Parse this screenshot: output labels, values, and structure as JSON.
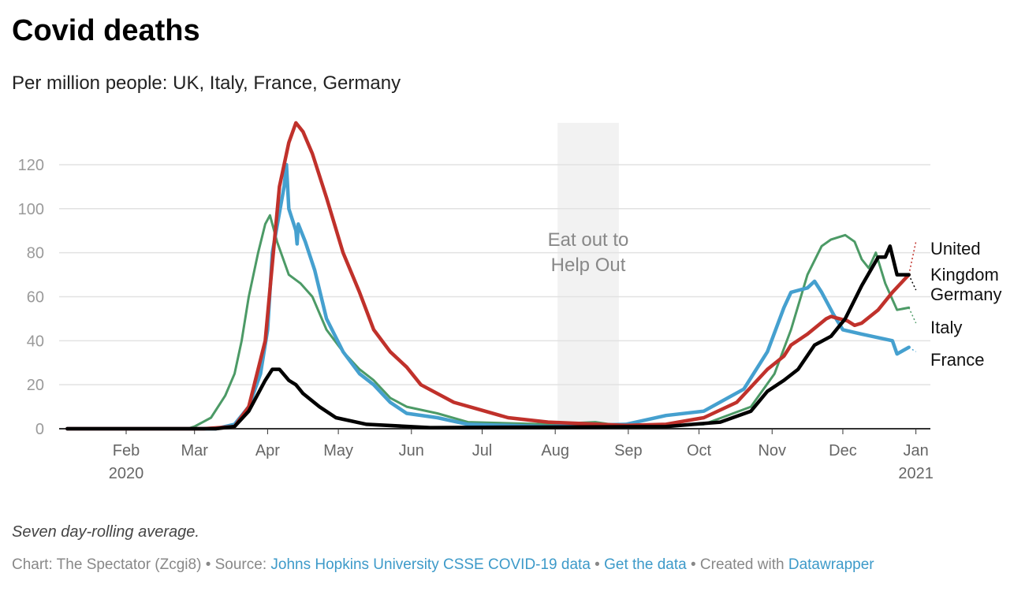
{
  "chart_data": {
    "type": "line",
    "title": "Covid deaths",
    "subtitle": "Per million people: UK, Italy, France, Germany",
    "xlabel": "",
    "ylabel": "",
    "ylim": [
      0,
      140
    ],
    "yticks": [
      0,
      20,
      40,
      60,
      80,
      100,
      120
    ],
    "x_unit": "day of year 2020",
    "xticks": [
      {
        "day": 32,
        "label": "Feb",
        "sub": "2020"
      },
      {
        "day": 61,
        "label": "Mar"
      },
      {
        "day": 92,
        "label": "Apr"
      },
      {
        "day": 122,
        "label": "May"
      },
      {
        "day": 153,
        "label": "Jun"
      },
      {
        "day": 183,
        "label": "Jul"
      },
      {
        "day": 214,
        "label": "Aug"
      },
      {
        "day": 245,
        "label": "Sep"
      },
      {
        "day": 275,
        "label": "Oct"
      },
      {
        "day": 306,
        "label": "Nov"
      },
      {
        "day": 336,
        "label": "Dec"
      },
      {
        "day": 367,
        "label": "Jan",
        "sub": "2021"
      }
    ],
    "grid": true,
    "annotation": {
      "label_line1": "Eat out to",
      "label_line2": "Help Out",
      "start_day": 215,
      "end_day": 241
    },
    "series": [
      {
        "name": "United Kingdom",
        "label_lines": [
          "United",
          "Kingdom"
        ],
        "color": "#c0312b",
        "width": 4.5,
        "end_value": 85,
        "points": [
          [
            7,
            0
          ],
          [
            65,
            0
          ],
          [
            78,
            1
          ],
          [
            84,
            10
          ],
          [
            91,
            40
          ],
          [
            94,
            75
          ],
          [
            97,
            110
          ],
          [
            101,
            130
          ],
          [
            104,
            139
          ],
          [
            107,
            135
          ],
          [
            111,
            125
          ],
          [
            117,
            105
          ],
          [
            124,
            80
          ],
          [
            131,
            62
          ],
          [
            137,
            45
          ],
          [
            144,
            35
          ],
          [
            151,
            28
          ],
          [
            157,
            20
          ],
          [
            171,
            12
          ],
          [
            181,
            9
          ],
          [
            194,
            5
          ],
          [
            211,
            3
          ],
          [
            244,
            1.5
          ],
          [
            261,
            2
          ],
          [
            277,
            5
          ],
          [
            291,
            12
          ],
          [
            304,
            27
          ],
          [
            311,
            33
          ],
          [
            314,
            38
          ],
          [
            321,
            43
          ],
          [
            329,
            50
          ],
          [
            331,
            51
          ],
          [
            338,
            49
          ],
          [
            341,
            47
          ],
          [
            344,
            48
          ],
          [
            351,
            54
          ],
          [
            357,
            62
          ],
          [
            364,
            70
          ]
        ]
      },
      {
        "name": "Germany",
        "label_lines": [
          "Germany"
        ],
        "color": "#000000",
        "width": 4.5,
        "end_value": 63,
        "points": [
          [
            7,
            0
          ],
          [
            70,
            0
          ],
          [
            78,
            1
          ],
          [
            84,
            8
          ],
          [
            91,
            22
          ],
          [
            94,
            27
          ],
          [
            97,
            27
          ],
          [
            101,
            22
          ],
          [
            104,
            20
          ],
          [
            107,
            16
          ],
          [
            114,
            10
          ],
          [
            121,
            5
          ],
          [
            134,
            2
          ],
          [
            161,
            0.5
          ],
          [
            261,
            1
          ],
          [
            284,
            3
          ],
          [
            297,
            8
          ],
          [
            304,
            17
          ],
          [
            311,
            22
          ],
          [
            317,
            27
          ],
          [
            324,
            38
          ],
          [
            331,
            42
          ],
          [
            337,
            50
          ],
          [
            344,
            65
          ],
          [
            351,
            78
          ],
          [
            354,
            78
          ],
          [
            356,
            83
          ],
          [
            359,
            70
          ],
          [
            364,
            70
          ]
        ]
      },
      {
        "name": "Italy",
        "label_lines": [
          "Italy"
        ],
        "color": "#4c9a66",
        "width": 3,
        "end_value": 48,
        "points": [
          [
            7,
            0
          ],
          [
            58,
            0
          ],
          [
            61,
            1
          ],
          [
            68,
            5
          ],
          [
            74,
            15
          ],
          [
            78,
            25
          ],
          [
            81,
            40
          ],
          [
            84,
            60
          ],
          [
            88,
            80
          ],
          [
            91,
            93
          ],
          [
            93,
            97
          ],
          [
            96,
            85
          ],
          [
            101,
            70
          ],
          [
            106,
            66
          ],
          [
            111,
            60
          ],
          [
            117,
            45
          ],
          [
            124,
            35
          ],
          [
            131,
            27
          ],
          [
            137,
            22
          ],
          [
            144,
            14
          ],
          [
            151,
            10
          ],
          [
            164,
            7
          ],
          [
            177,
            3
          ],
          [
            211,
            2
          ],
          [
            231,
            3
          ],
          [
            244,
            1
          ],
          [
            277,
            2
          ],
          [
            297,
            10
          ],
          [
            307,
            25
          ],
          [
            314,
            45
          ],
          [
            321,
            70
          ],
          [
            327,
            83
          ],
          [
            331,
            86
          ],
          [
            337,
            88
          ],
          [
            341,
            85
          ],
          [
            344,
            77
          ],
          [
            347,
            73
          ],
          [
            350,
            80
          ],
          [
            354,
            66
          ],
          [
            359,
            54
          ],
          [
            364,
            55
          ]
        ]
      },
      {
        "name": "France",
        "label_lines": [
          "France"
        ],
        "color": "#45a0cf",
        "width": 4.5,
        "end_value": 35,
        "points": [
          [
            7,
            0
          ],
          [
            70,
            0
          ],
          [
            78,
            2
          ],
          [
            84,
            10
          ],
          [
            89,
            25
          ],
          [
            92,
            45
          ],
          [
            94,
            80
          ],
          [
            99,
            110
          ],
          [
            100,
            120
          ],
          [
            101,
            100
          ],
          [
            104,
            90
          ],
          [
            104.5,
            84
          ],
          [
            105,
            93
          ],
          [
            108,
            85
          ],
          [
            112,
            72
          ],
          [
            117,
            50
          ],
          [
            124,
            35
          ],
          [
            131,
            25
          ],
          [
            137,
            20
          ],
          [
            144,
            12
          ],
          [
            151,
            7
          ],
          [
            164,
            5
          ],
          [
            177,
            2
          ],
          [
            211,
            1
          ],
          [
            244,
            2
          ],
          [
            261,
            6
          ],
          [
            277,
            8
          ],
          [
            294,
            18
          ],
          [
            304,
            35
          ],
          [
            311,
            55
          ],
          [
            314,
            62
          ],
          [
            321,
            64
          ],
          [
            324,
            67
          ],
          [
            327,
            62
          ],
          [
            332,
            52
          ],
          [
            336,
            45
          ],
          [
            344,
            43
          ],
          [
            357,
            40
          ],
          [
            359,
            34
          ],
          [
            364,
            37
          ]
        ]
      }
    ]
  },
  "note": "Seven day-rolling average.",
  "footer": {
    "prefix": "Chart: The Spectator (Zcgi8) • Source: ",
    "source_link": "Johns Hopkins University CSSE COVID-19 data",
    "sep1": " • ",
    "data_link": "Get the data",
    "sep2": " • Created with ",
    "tool_link": "Datawrapper"
  }
}
